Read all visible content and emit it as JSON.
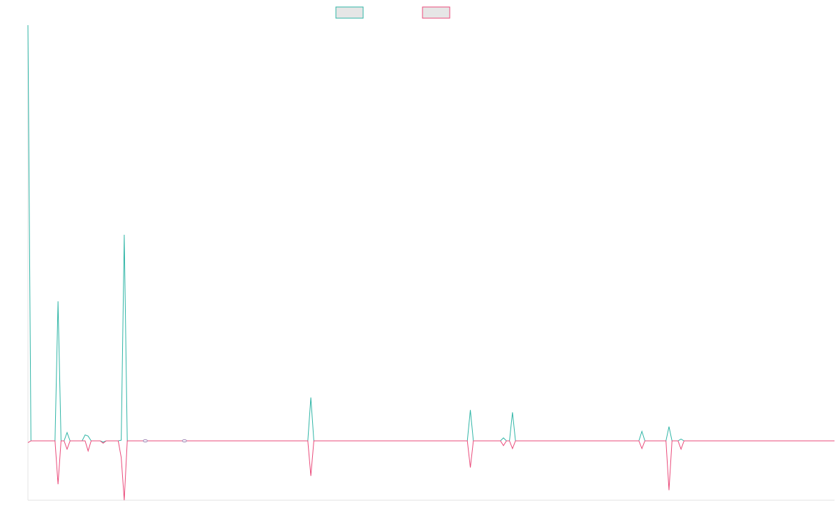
{
  "chart_data": {
    "type": "line",
    "title": "",
    "xlabel": "",
    "ylabel": "",
    "grid": false,
    "legend_position": "top-center",
    "colors": {
      "series_a": "#2fb5a6",
      "series_b": "#ea4a7a",
      "legend_fill": "#e6e6e6",
      "axis": "#e3e3e3"
    },
    "ylim": [
      -100,
      700
    ],
    "xlim": [
      0,
      268
    ],
    "series": [
      {
        "name": "",
        "points": [
          [
            0,
            700
          ],
          [
            1,
            0
          ],
          [
            9,
            0
          ],
          [
            10,
            235
          ],
          [
            11,
            0
          ],
          [
            12,
            0
          ],
          [
            13,
            14
          ],
          [
            14,
            0
          ],
          [
            18,
            0
          ],
          [
            19,
            10
          ],
          [
            20,
            8
          ],
          [
            21,
            0
          ],
          [
            24,
            0
          ],
          [
            25,
            -2
          ],
          [
            26,
            0
          ],
          [
            30,
            0
          ],
          [
            31,
            1
          ],
          [
            32,
            347
          ],
          [
            33,
            0
          ],
          [
            38,
            0
          ],
          [
            39,
            0
          ],
          [
            50,
            0
          ],
          [
            52,
            0
          ],
          [
            93,
            0
          ],
          [
            94,
            73
          ],
          [
            95,
            0
          ],
          [
            146,
            0
          ],
          [
            147,
            52
          ],
          [
            148,
            0
          ],
          [
            157,
            0
          ],
          [
            158,
            5
          ],
          [
            159,
            0
          ],
          [
            160,
            0
          ],
          [
            161,
            48
          ],
          [
            162,
            0
          ],
          [
            203,
            0
          ],
          [
            204,
            16
          ],
          [
            205,
            0
          ],
          [
            212,
            0
          ],
          [
            213,
            24
          ],
          [
            214,
            0
          ],
          [
            216,
            0
          ],
          [
            217,
            3
          ],
          [
            218,
            0
          ],
          [
            268,
            0
          ]
        ]
      },
      {
        "name": "",
        "points": [
          [
            0,
            -3
          ],
          [
            1,
            0
          ],
          [
            9,
            0
          ],
          [
            10,
            -73
          ],
          [
            11,
            0
          ],
          [
            12,
            0
          ],
          [
            13,
            -14
          ],
          [
            14,
            0
          ],
          [
            18,
            0
          ],
          [
            19,
            0
          ],
          [
            20,
            -17
          ],
          [
            21,
            0
          ],
          [
            24,
            0
          ],
          [
            25,
            -4
          ],
          [
            26,
            0
          ],
          [
            30,
            0
          ],
          [
            31,
            -28
          ],
          [
            32,
            -100
          ],
          [
            33,
            0
          ],
          [
            38,
            0
          ],
          [
            39,
            0
          ],
          [
            50,
            0
          ],
          [
            52,
            0
          ],
          [
            93,
            0
          ],
          [
            94,
            -59
          ],
          [
            95,
            0
          ],
          [
            146,
            0
          ],
          [
            147,
            -45
          ],
          [
            148,
            0
          ],
          [
            157,
            0
          ],
          [
            158,
            -8
          ],
          [
            159,
            0
          ],
          [
            160,
            0
          ],
          [
            161,
            -13
          ],
          [
            162,
            0
          ],
          [
            203,
            0
          ],
          [
            204,
            -13
          ],
          [
            205,
            0
          ],
          [
            212,
            0
          ],
          [
            213,
            -83
          ],
          [
            214,
            0
          ],
          [
            216,
            0
          ],
          [
            217,
            -14
          ],
          [
            218,
            0
          ],
          [
            268,
            0
          ]
        ]
      }
    ]
  }
}
